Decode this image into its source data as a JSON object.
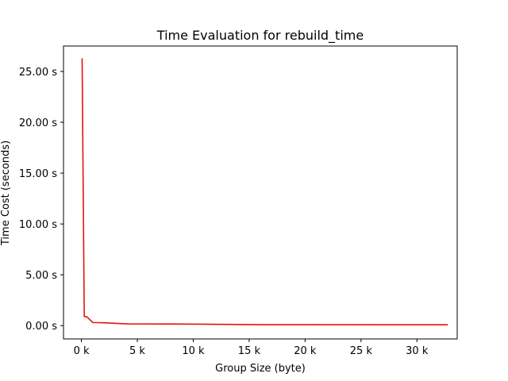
{
  "chart_data": {
    "type": "line",
    "title": "Time Evaluation for rebuild_time",
    "xlabel": "Group Size (byte)",
    "ylabel": "Time Cost (seconds)",
    "xlim": [
      -1600,
      33600
    ],
    "ylim": [
      -1.31,
      27.5
    ],
    "grid": false,
    "legend": "none",
    "x_ticks": [
      {
        "value": 0,
        "label": "0 k"
      },
      {
        "value": 5000,
        "label": "5 k"
      },
      {
        "value": 10000,
        "label": "10 k"
      },
      {
        "value": 15000,
        "label": "15 k"
      },
      {
        "value": 20000,
        "label": "20 k"
      },
      {
        "value": 25000,
        "label": "25 k"
      },
      {
        "value": 30000,
        "label": "30 k"
      }
    ],
    "y_ticks": [
      {
        "value": 0,
        "label": "0.00 s"
      },
      {
        "value": 5,
        "label": "5.00 s"
      },
      {
        "value": 10,
        "label": "10.00 s"
      },
      {
        "value": 15,
        "label": "15.00 s"
      },
      {
        "value": 20,
        "label": "20.00 s"
      },
      {
        "value": 25,
        "label": "25.00 s"
      }
    ],
    "series": [
      {
        "color": "#e8120c",
        "x": [
          64,
          256,
          512,
          1024,
          2048,
          4096,
          8192,
          16384,
          32768
        ],
        "y": [
          26.3,
          0.9,
          0.85,
          0.3,
          0.28,
          0.17,
          0.16,
          0.09,
          0.08
        ]
      }
    ]
  }
}
